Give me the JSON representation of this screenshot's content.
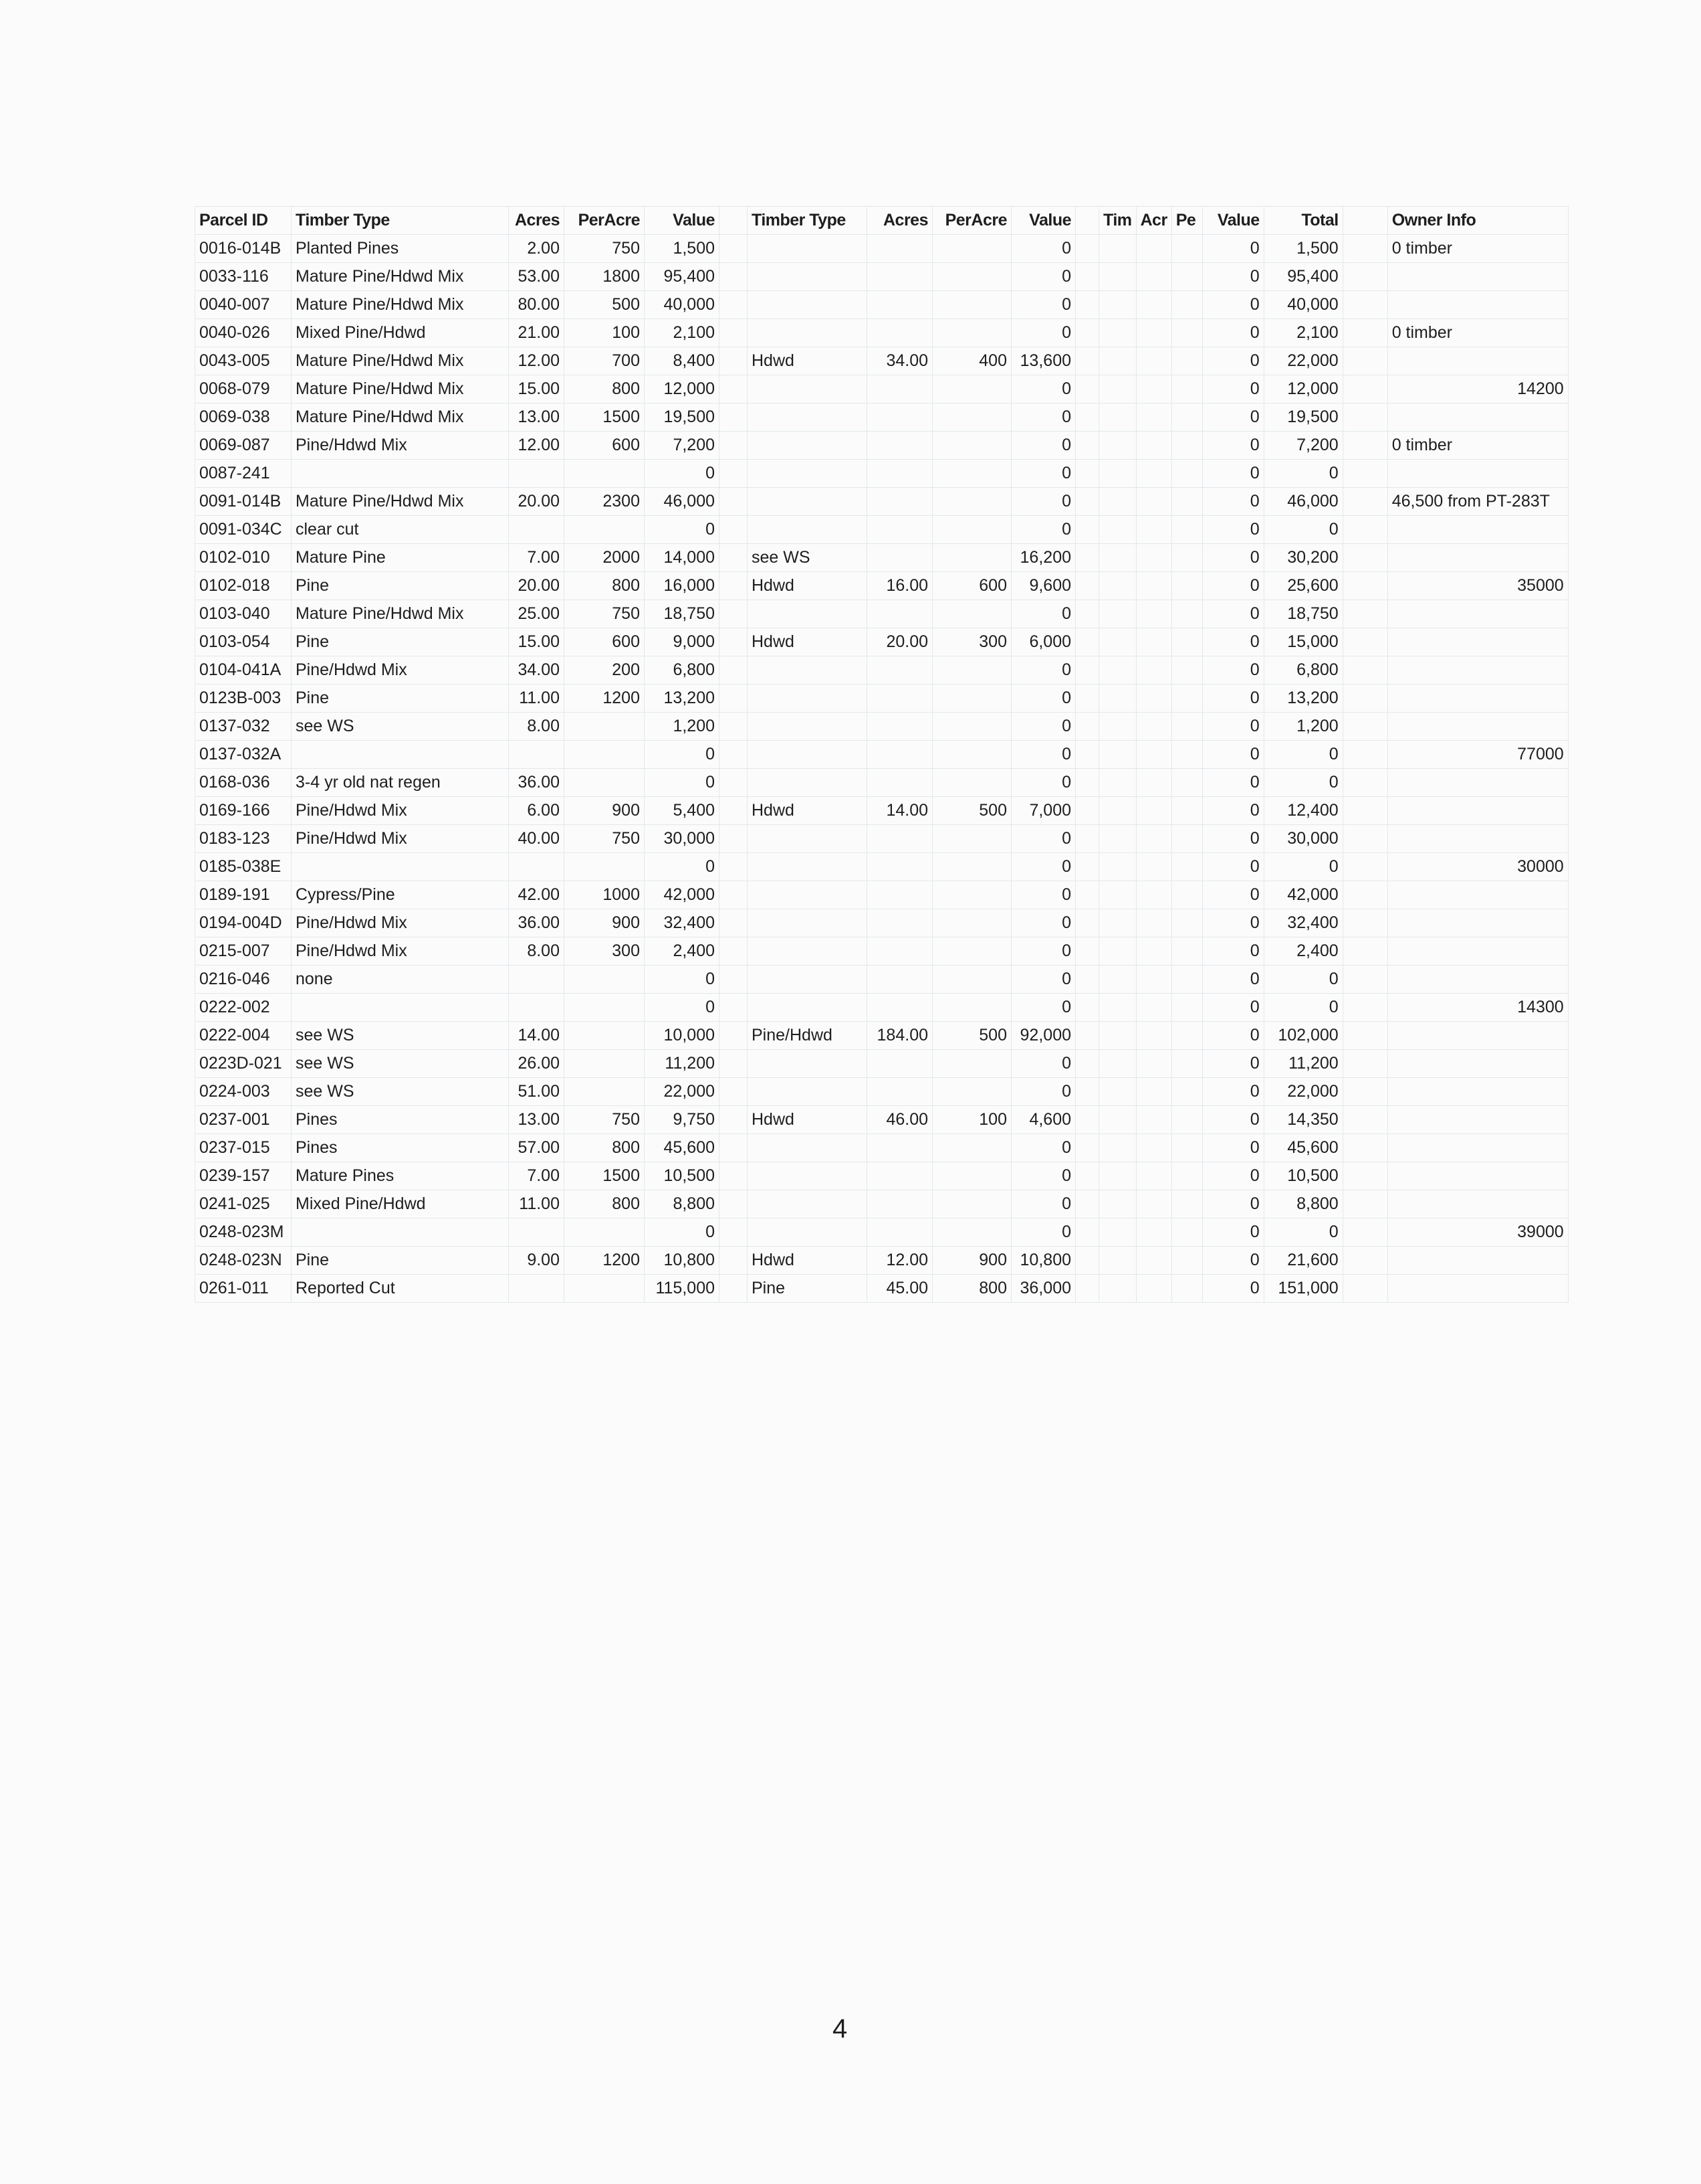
{
  "table": {
    "headers": [
      "Parcel ID",
      "Timber Type",
      "Acres",
      "PerAcre",
      "Value",
      "",
      "Timber Type",
      "Acres",
      "PerAcre",
      "Value",
      "",
      "Tim",
      "Acr",
      "Pe",
      "Value",
      "Total",
      "",
      "Owner Info"
    ],
    "rows": [
      [
        "0016-014B",
        "Planted Pines",
        "2.00",
        "750",
        "1,500",
        "",
        "",
        "",
        "0",
        "",
        "",
        "",
        "0",
        "1,500",
        "0 timber"
      ],
      [
        "0033-116",
        "Mature Pine/Hdwd Mix",
        "53.00",
        "1800",
        "95,400",
        "",
        "",
        "",
        "0",
        "",
        "",
        "",
        "0",
        "95,400",
        ""
      ],
      [
        "0040-007",
        "Mature Pine/Hdwd Mix",
        "80.00",
        "500",
        "40,000",
        "",
        "",
        "",
        "0",
        "",
        "",
        "",
        "0",
        "40,000",
        ""
      ],
      [
        "0040-026",
        "Mixed Pine/Hdwd",
        "21.00",
        "100",
        "2,100",
        "",
        "",
        "",
        "0",
        "",
        "",
        "",
        "0",
        "2,100",
        "0 timber"
      ],
      [
        "0043-005",
        "Mature Pine/Hdwd Mix",
        "12.00",
        "700",
        "8,400",
        "Hdwd",
        "34.00",
        "400",
        "13,600",
        "",
        "",
        "",
        "0",
        "22,000",
        ""
      ],
      [
        "0068-079",
        "Mature Pine/Hdwd Mix",
        "15.00",
        "800",
        "12,000",
        "",
        "",
        "",
        "0",
        "",
        "",
        "",
        "0",
        "12,000",
        "14200"
      ],
      [
        "0069-038",
        "Mature Pine/Hdwd Mix",
        "13.00",
        "1500",
        "19,500",
        "",
        "",
        "",
        "0",
        "",
        "",
        "",
        "0",
        "19,500",
        ""
      ],
      [
        "0069-087",
        "Pine/Hdwd Mix",
        "12.00",
        "600",
        "7,200",
        "",
        "",
        "",
        "0",
        "",
        "",
        "",
        "0",
        "7,200",
        "0 timber"
      ],
      [
        "0087-241",
        "",
        "",
        "",
        "0",
        "",
        "",
        "",
        "0",
        "",
        "",
        "",
        "0",
        "0",
        ""
      ],
      [
        "0091-014B",
        "Mature Pine/Hdwd Mix",
        "20.00",
        "2300",
        "46,000",
        "",
        "",
        "",
        "0",
        "",
        "",
        "",
        "0",
        "46,000",
        "46,500 from PT-283T"
      ],
      [
        "0091-034C",
        "clear cut",
        "",
        "",
        "0",
        "",
        "",
        "",
        "0",
        "",
        "",
        "",
        "0",
        "0",
        ""
      ],
      [
        "0102-010",
        "Mature Pine",
        "7.00",
        "2000",
        "14,000",
        "see WS",
        "",
        "",
        "16,200",
        "",
        "",
        "",
        "0",
        "30,200",
        ""
      ],
      [
        "0102-018",
        "Pine",
        "20.00",
        "800",
        "16,000",
        "Hdwd",
        "16.00",
        "600",
        "9,600",
        "",
        "",
        "",
        "0",
        "25,600",
        "35000"
      ],
      [
        "0103-040",
        "Mature Pine/Hdwd Mix",
        "25.00",
        "750",
        "18,750",
        "",
        "",
        "",
        "0",
        "",
        "",
        "",
        "0",
        "18,750",
        ""
      ],
      [
        "0103-054",
        "Pine",
        "15.00",
        "600",
        "9,000",
        "Hdwd",
        "20.00",
        "300",
        "6,000",
        "",
        "",
        "",
        "0",
        "15,000",
        ""
      ],
      [
        "0104-041A",
        "Pine/Hdwd Mix",
        "34.00",
        "200",
        "6,800",
        "",
        "",
        "",
        "0",
        "",
        "",
        "",
        "0",
        "6,800",
        ""
      ],
      [
        "0123B-003",
        "Pine",
        "11.00",
        "1200",
        "13,200",
        "",
        "",
        "",
        "0",
        "",
        "",
        "",
        "0",
        "13,200",
        ""
      ],
      [
        "0137-032",
        "see WS",
        "8.00",
        "",
        "1,200",
        "",
        "",
        "",
        "0",
        "",
        "",
        "",
        "0",
        "1,200",
        ""
      ],
      [
        "0137-032A",
        "",
        "",
        "",
        "0",
        "",
        "",
        "",
        "0",
        "",
        "",
        "",
        "0",
        "0",
        "77000"
      ],
      [
        "0168-036",
        "3-4 yr old nat regen",
        "36.00",
        "",
        "0",
        "",
        "",
        "",
        "0",
        "",
        "",
        "",
        "0",
        "0",
        ""
      ],
      [
        "0169-166",
        "Pine/Hdwd Mix",
        "6.00",
        "900",
        "5,400",
        "Hdwd",
        "14.00",
        "500",
        "7,000",
        "",
        "",
        "",
        "0",
        "12,400",
        ""
      ],
      [
        "0183-123",
        "Pine/Hdwd Mix",
        "40.00",
        "750",
        "30,000",
        "",
        "",
        "",
        "0",
        "",
        "",
        "",
        "0",
        "30,000",
        ""
      ],
      [
        "0185-038E",
        "",
        "",
        "",
        "0",
        "",
        "",
        "",
        "0",
        "",
        "",
        "",
        "0",
        "0",
        "30000"
      ],
      [
        "0189-191",
        "Cypress/Pine",
        "42.00",
        "1000",
        "42,000",
        "",
        "",
        "",
        "0",
        "",
        "",
        "",
        "0",
        "42,000",
        ""
      ],
      [
        "0194-004D",
        "Pine/Hdwd Mix",
        "36.00",
        "900",
        "32,400",
        "",
        "",
        "",
        "0",
        "",
        "",
        "",
        "0",
        "32,400",
        ""
      ],
      [
        "0215-007",
        "Pine/Hdwd Mix",
        "8.00",
        "300",
        "2,400",
        "",
        "",
        "",
        "0",
        "",
        "",
        "",
        "0",
        "2,400",
        ""
      ],
      [
        "0216-046",
        "none",
        "",
        "",
        "0",
        "",
        "",
        "",
        "0",
        "",
        "",
        "",
        "0",
        "0",
        ""
      ],
      [
        "0222-002",
        "",
        "",
        "",
        "0",
        "",
        "",
        "",
        "0",
        "",
        "",
        "",
        "0",
        "0",
        "14300"
      ],
      [
        "0222-004",
        "see WS",
        "14.00",
        "",
        "10,000",
        "Pine/Hdwd",
        "184.00",
        "500",
        "92,000",
        "",
        "",
        "",
        "0",
        "102,000",
        ""
      ],
      [
        "0223D-021",
        "see WS",
        "26.00",
        "",
        "11,200",
        "",
        "",
        "",
        "0",
        "",
        "",
        "",
        "0",
        "11,200",
        ""
      ],
      [
        "0224-003",
        "see WS",
        "51.00",
        "",
        "22,000",
        "",
        "",
        "",
        "0",
        "",
        "",
        "",
        "0",
        "22,000",
        ""
      ],
      [
        "0237-001",
        "Pines",
        "13.00",
        "750",
        "9,750",
        "Hdwd",
        "46.00",
        "100",
        "4,600",
        "",
        "",
        "",
        "0",
        "14,350",
        ""
      ],
      [
        "0237-015",
        "Pines",
        "57.00",
        "800",
        "45,600",
        "",
        "",
        "",
        "0",
        "",
        "",
        "",
        "0",
        "45,600",
        ""
      ],
      [
        "0239-157",
        "Mature Pines",
        "7.00",
        "1500",
        "10,500",
        "",
        "",
        "",
        "0",
        "",
        "",
        "",
        "0",
        "10,500",
        ""
      ],
      [
        "0241-025",
        "Mixed Pine/Hdwd",
        "11.00",
        "800",
        "8,800",
        "",
        "",
        "",
        "0",
        "",
        "",
        "",
        "0",
        "8,800",
        ""
      ],
      [
        "0248-023M",
        "",
        "",
        "",
        "0",
        "",
        "",
        "",
        "0",
        "",
        "",
        "",
        "0",
        "0",
        "39000"
      ],
      [
        "0248-023N",
        "Pine",
        "9.00",
        "1200",
        "10,800",
        "Hdwd",
        "12.00",
        "900",
        "10,800",
        "",
        "",
        "",
        "0",
        "21,600",
        ""
      ],
      [
        "0261-011",
        "Reported Cut",
        "",
        "",
        "115,000",
        "Pine",
        "45.00",
        "800",
        "36,000",
        "",
        "",
        "",
        "0",
        "151,000",
        ""
      ]
    ]
  },
  "page_number": "4"
}
